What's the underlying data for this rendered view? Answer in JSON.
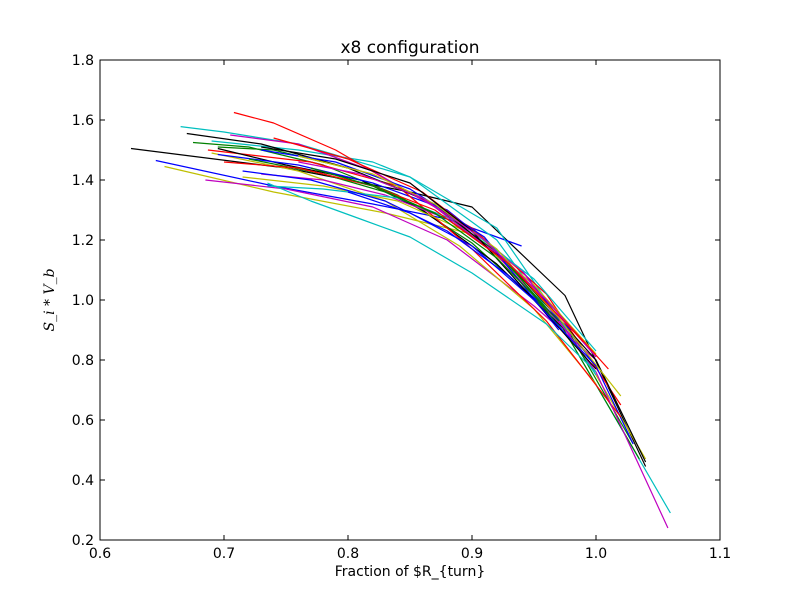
{
  "chart_data": {
    "type": "line",
    "title": "x8 configuration",
    "xlabel": "Fraction of $R_{turn}",
    "ylabel": "S_i * V_b",
    "xlim": [
      0.6,
      1.1
    ],
    "ylim": [
      0.2,
      1.8
    ],
    "xticks": [
      "0.6",
      "0.7",
      "0.8",
      "0.9",
      "1.0",
      "1.1"
    ],
    "yticks": [
      "0.2",
      "0.4",
      "0.6",
      "0.8",
      "1.0",
      "1.2",
      "1.4",
      "1.6",
      "1.8"
    ],
    "grid": false,
    "legend": "none",
    "colors": [
      "#0000ff",
      "#008000",
      "#ff0000",
      "#00bfbf",
      "#bf00bf",
      "#bfbf00",
      "#000000"
    ],
    "series": [
      {
        "color": "#000000",
        "x": [
          0.625,
          0.75,
          0.85,
          0.9,
          0.975,
          1.04
        ],
        "y": [
          1.505,
          1.44,
          1.36,
          1.31,
          1.015,
          0.445
        ]
      },
      {
        "color": "#0000ff",
        "x": [
          0.645,
          0.74,
          0.82,
          0.88,
          0.94
        ],
        "y": [
          1.465,
          1.38,
          1.32,
          1.27,
          1.18
        ]
      },
      {
        "color": "#bfbf00",
        "x": [
          0.652,
          0.74,
          0.83,
          0.9,
          0.97,
          1.04
        ],
        "y": [
          1.445,
          1.36,
          1.29,
          1.22,
          0.96,
          0.47
        ]
      },
      {
        "color": "#00bfbf",
        "x": [
          0.665,
          0.7,
          0.76,
          0.85,
          0.92,
          0.98,
          1.06
        ],
        "y": [
          1.578,
          1.56,
          1.52,
          1.41,
          1.2,
          0.86,
          0.29
        ]
      },
      {
        "color": "#00bfbf",
        "x": [
          0.69,
          0.76,
          0.82,
          0.85,
          0.92,
          0.96,
          1.0
        ],
        "y": [
          1.53,
          1.5,
          1.46,
          1.41,
          1.24,
          1.0,
          0.75
        ]
      },
      {
        "color": "#008000",
        "x": [
          0.675,
          0.72,
          0.78,
          0.84,
          0.9,
          0.97,
          1.035
        ],
        "y": [
          1.525,
          1.51,
          1.45,
          1.35,
          1.19,
          0.93,
          0.47
        ]
      },
      {
        "color": "#bf00bf",
        "x": [
          0.685,
          0.75,
          0.82,
          0.88,
          0.95,
          1.0
        ],
        "y": [
          1.4,
          1.37,
          1.31,
          1.2,
          0.98,
          0.8
        ]
      },
      {
        "color": "#ff0000",
        "x": [
          0.687,
          0.77,
          0.84,
          0.9,
          0.96,
          1.02
        ],
        "y": [
          1.5,
          1.46,
          1.38,
          1.24,
          1.02,
          0.65
        ]
      },
      {
        "color": "#bfbf00",
        "x": [
          0.69,
          0.76,
          0.83,
          0.89,
          0.95,
          1.0
        ],
        "y": [
          1.49,
          1.43,
          1.33,
          1.18,
          0.97,
          0.72
        ]
      },
      {
        "color": "#000000",
        "x": [
          0.695,
          0.75,
          0.81,
          0.86,
          0.92,
          0.98
        ],
        "y": [
          1.505,
          1.45,
          1.4,
          1.3,
          1.12,
          0.88
        ]
      },
      {
        "color": "#008000",
        "x": [
          0.695,
          0.74,
          0.8,
          0.86,
          0.92,
          0.98,
          1.03
        ],
        "y": [
          1.51,
          1.5,
          1.44,
          1.34,
          1.16,
          0.88,
          0.52
        ]
      },
      {
        "color": "#0000ff",
        "x": [
          0.695,
          0.76,
          0.82,
          0.88,
          0.94,
          1.0,
          1.03
        ],
        "y": [
          1.485,
          1.45,
          1.39,
          1.3,
          1.1,
          0.78,
          0.52
        ]
      },
      {
        "color": "#ff0000",
        "x": [
          0.708,
          0.74,
          0.79,
          0.84,
          0.9,
          0.96,
          1.02
        ],
        "y": [
          1.625,
          1.59,
          1.5,
          1.38,
          1.17,
          0.93,
          0.61
        ]
      },
      {
        "color": "#bfbf00",
        "x": [
          0.715,
          0.78,
          0.84,
          0.9,
          0.95,
          1.0
        ],
        "y": [
          1.41,
          1.38,
          1.33,
          1.22,
          1.05,
          0.82
        ]
      },
      {
        "color": "#000000",
        "x": [
          0.67,
          0.73,
          0.8,
          0.87,
          0.93,
          1.0,
          1.04
        ],
        "y": [
          1.555,
          1.52,
          1.44,
          1.32,
          1.12,
          0.8,
          0.46
        ]
      },
      {
        "color": "#bf00bf",
        "x": [
          0.73,
          0.78,
          0.83,
          0.88,
          0.94,
          1.0,
          1.058
        ],
        "y": [
          1.42,
          1.4,
          1.35,
          1.27,
          1.1,
          0.76,
          0.24
        ]
      },
      {
        "color": "#00bfbf",
        "x": [
          0.735,
          0.78,
          0.84,
          0.89,
          0.95,
          1.0
        ],
        "y": [
          1.38,
          1.37,
          1.34,
          1.26,
          1.07,
          0.83
        ]
      },
      {
        "color": "#0000ff",
        "x": [
          0.715,
          0.77,
          0.83,
          0.88,
          0.93,
          0.98
        ],
        "y": [
          1.43,
          1.4,
          1.33,
          1.23,
          1.08,
          0.9
        ]
      },
      {
        "color": "#00bfbf",
        "x": [
          0.735,
          0.77,
          0.81,
          0.85,
          0.9,
          0.96,
          1.0
        ],
        "y": [
          1.39,
          1.33,
          1.27,
          1.21,
          1.09,
          0.92,
          0.76
        ]
      },
      {
        "color": "#bf00bf",
        "x": [
          0.705,
          0.76,
          0.82,
          0.87,
          0.92,
          0.98
        ],
        "y": [
          1.55,
          1.52,
          1.43,
          1.31,
          1.15,
          0.88
        ]
      },
      {
        "color": "#ff0000",
        "x": [
          0.74,
          0.8,
          0.86,
          0.91,
          0.96,
          1.01
        ],
        "y": [
          1.54,
          1.47,
          1.36,
          1.2,
          1.0,
          0.77
        ]
      },
      {
        "color": "#008000",
        "x": [
          0.72,
          0.78,
          0.83,
          0.88,
          0.93,
          0.98
        ],
        "y": [
          1.47,
          1.42,
          1.36,
          1.27,
          1.12,
          0.86
        ]
      },
      {
        "color": "#0000ff",
        "x": [
          0.73,
          0.79,
          0.85,
          0.91,
          0.97
        ],
        "y": [
          1.5,
          1.46,
          1.37,
          1.21,
          0.9
        ]
      },
      {
        "color": "#bfbf00",
        "x": [
          0.76,
          0.82,
          0.87,
          0.92,
          0.97,
          1.02
        ],
        "y": [
          1.48,
          1.42,
          1.32,
          1.17,
          0.94,
          0.68
        ]
      },
      {
        "color": "#000000",
        "x": [
          0.73,
          0.79,
          0.85,
          0.9,
          0.95,
          1.0
        ],
        "y": [
          1.51,
          1.47,
          1.39,
          1.23,
          1.0,
          0.77
        ]
      },
      {
        "color": "#bf00bf",
        "x": [
          0.76,
          0.81,
          0.86,
          0.91,
          0.96,
          1.0
        ],
        "y": [
          1.46,
          1.42,
          1.34,
          1.2,
          1.0,
          0.81
        ]
      },
      {
        "color": "#ff0000",
        "x": [
          0.7,
          0.76,
          0.82,
          0.87,
          0.93,
          0.99
        ],
        "y": [
          1.46,
          1.44,
          1.38,
          1.3,
          1.12,
          0.86
        ]
      },
      {
        "color": "#008000",
        "x": [
          0.77,
          0.82,
          0.87,
          0.92,
          0.97
        ],
        "y": [
          1.44,
          1.38,
          1.29,
          1.14,
          0.93
        ]
      },
      {
        "color": "#0000ff",
        "x": [
          0.8,
          0.85,
          0.9,
          0.95,
          1.0
        ],
        "y": [
          1.36,
          1.29,
          1.18,
          1.0,
          0.78
        ]
      }
    ]
  }
}
